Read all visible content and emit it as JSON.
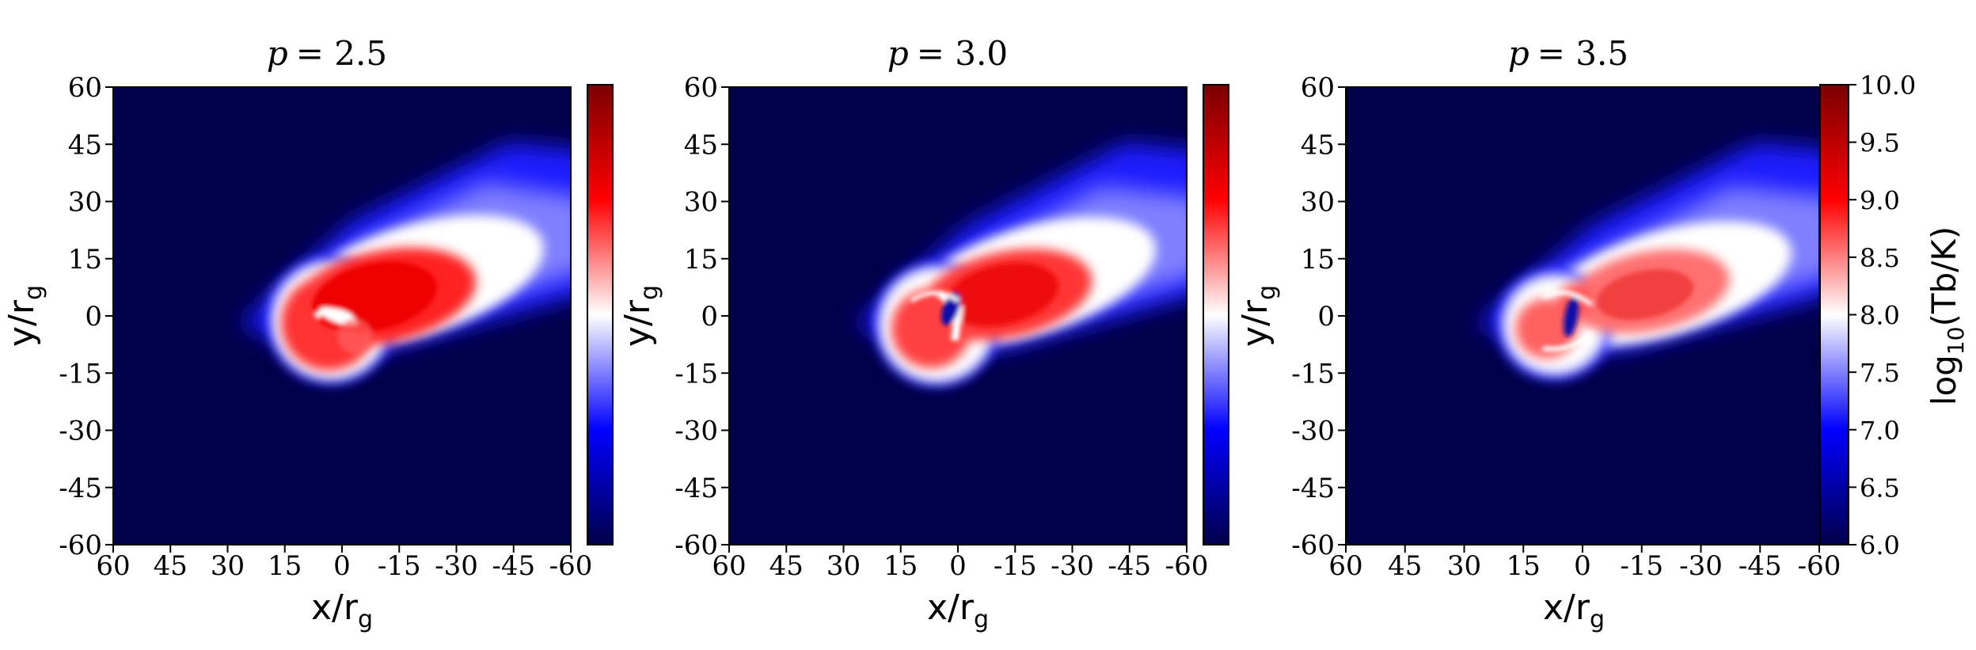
{
  "colors": {
    "background": "#00004a",
    "colormap": [
      "#00004a",
      "#0000ff",
      "#ffffff",
      "#ff0000",
      "#7a0000"
    ]
  },
  "chart_data": [
    {
      "type": "heatmap",
      "title": "p = 2.5",
      "title_var": "p",
      "title_value": "= 2.5",
      "xlabel": "x/r",
      "xlabel_sub": "g",
      "ylabel": "y/r",
      "ylabel_sub": "g",
      "xlim": [
        60,
        -60
      ],
      "ylim": [
        -60,
        60
      ],
      "xticks": [
        "60",
        "45",
        "30",
        "15",
        "0",
        "-15",
        "-30",
        "-45",
        "-60"
      ],
      "yticks": [
        "60",
        "45",
        "30",
        "15",
        "0",
        "-15",
        "-30",
        "-45",
        "-60"
      ],
      "features": {
        "core_center": [
          -10,
          4
        ],
        "core_intensity": 9.5,
        "ring_center": [
          8,
          -2
        ],
        "ring_radius": 12,
        "plume_direction": "toward upper-left of data (negative x, positive y)"
      }
    },
    {
      "type": "heatmap",
      "title": "p = 3.0",
      "title_var": "p",
      "title_value": "= 3.0",
      "xlabel": "x/r",
      "xlabel_sub": "g",
      "ylabel": "y/r",
      "ylabel_sub": "g",
      "xlim": [
        60,
        -60
      ],
      "ylim": [
        -60,
        60
      ],
      "xticks": [
        "60",
        "45",
        "30",
        "15",
        "0",
        "-15",
        "-30",
        "-45",
        "-60"
      ],
      "yticks": [
        "60",
        "45",
        "30",
        "15",
        "0",
        "-15",
        "-30",
        "-45",
        "-60"
      ],
      "features": {
        "core_center": [
          -15,
          4
        ],
        "core_intensity": 9.2,
        "ring_center": [
          6,
          -3
        ],
        "ring_radius": 12,
        "plume_direction": "toward negative x, positive y"
      }
    },
    {
      "type": "heatmap",
      "title": "p = 3.5",
      "title_var": "p",
      "title_value": "= 3.5",
      "xlabel": "x/r",
      "xlabel_sub": "g",
      "ylabel": "y/r",
      "ylabel_sub": "g",
      "xlim": [
        60,
        -60
      ],
      "ylim": [
        -60,
        60
      ],
      "xticks": [
        "60",
        "45",
        "30",
        "15",
        "0",
        "-15",
        "-30",
        "-45",
        "-60"
      ],
      "yticks": [
        "60",
        "45",
        "30",
        "15",
        "0",
        "-15",
        "-30",
        "-45",
        "-60"
      ],
      "colorbar": {
        "label": "log",
        "label_sub": "10",
        "label_rest": "(Tb/K)",
        "range": [
          6.0,
          10.0
        ],
        "ticks": [
          "10.0",
          "9.5",
          "9.0",
          "8.5",
          "8.0",
          "7.5",
          "7.0",
          "6.5",
          "6.0"
        ]
      },
      "features": {
        "core_center": [
          -20,
          5
        ],
        "core_intensity": 8.8,
        "ring_center": [
          5,
          -2
        ],
        "ring_radius": 11,
        "plume_direction": "toward negative x, positive y"
      }
    }
  ]
}
